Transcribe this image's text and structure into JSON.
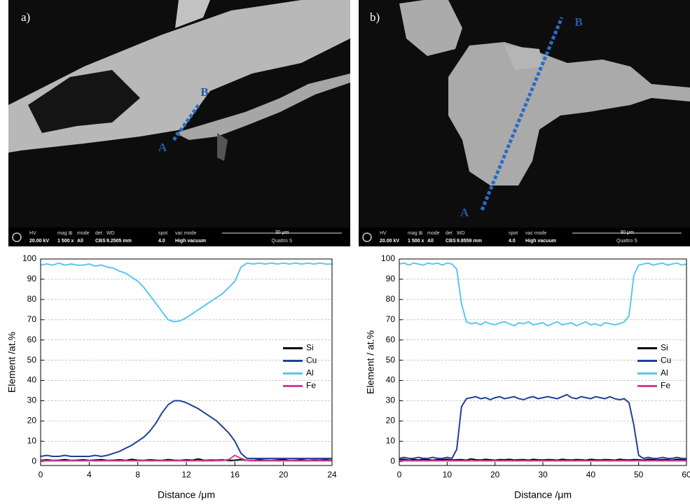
{
  "images": [
    {
      "label": "a)",
      "start": "A",
      "end": "B",
      "info": [
        {
          "label": "HV",
          "value": "20.00 kV"
        },
        {
          "label": "mag ⊞",
          "value": "1 500 x"
        },
        {
          "label": "mode",
          "value": "All"
        },
        {
          "label": "det",
          "value": "CBS"
        },
        {
          "label": "WD",
          "value": "9.2505 mm"
        },
        {
          "label": "spot",
          "value": "4.0"
        },
        {
          "label": "vac mode",
          "value": "High vacuum"
        }
      ],
      "scale": "30 μm",
      "instrument": "Quattro S"
    },
    {
      "label": "b)",
      "start": "A",
      "end": "B",
      "info": [
        {
          "label": "HV",
          "value": "20.00 kV"
        },
        {
          "label": "mag ⊞",
          "value": "1 500 x"
        },
        {
          "label": "mode",
          "value": "All"
        },
        {
          "label": "det",
          "value": "CBS"
        },
        {
          "label": "WD",
          "value": "9.8559 mm"
        },
        {
          "label": "spot",
          "value": "4.0"
        },
        {
          "label": "vac mode",
          "value": "High vacuum"
        }
      ],
      "scale": "30 μm",
      "instrument": "Quattro S"
    }
  ],
  "chart_data": [
    {
      "type": "line",
      "x_label": "Distance /μm",
      "y_label": "Element /at.%",
      "xlim": [
        0,
        24
      ],
      "xticks": [
        0,
        4,
        8,
        12,
        16,
        20,
        24
      ],
      "ylim": [
        -2,
        100
      ],
      "yticks": [
        0,
        10,
        20,
        30,
        40,
        50,
        60,
        70,
        80,
        90,
        100
      ],
      "grid": true,
      "legend": "center right",
      "x": [
        0,
        0.5,
        1,
        1.5,
        2,
        2.5,
        3,
        3.5,
        4,
        4.5,
        5,
        5.5,
        6,
        6.5,
        7,
        7.5,
        8,
        8.5,
        9,
        9.5,
        10,
        10.5,
        11,
        11.5,
        12,
        12.5,
        13,
        13.5,
        14,
        14.5,
        15,
        15.5,
        16,
        16.5,
        17,
        17.5,
        18,
        18.5,
        19,
        19.5,
        20,
        20.5,
        21,
        21.5,
        22,
        22.5,
        23,
        23.5,
        24
      ],
      "series": [
        {
          "name": "Si",
          "color": "#000000",
          "values": [
            0.5,
            0.8,
            0.5,
            0.6,
            0.9,
            0.5,
            0.6,
            0.8,
            0.5,
            0.7,
            0.9,
            0.5,
            0.6,
            0.8,
            0.5,
            1,
            0.6,
            0.5,
            0.8,
            0.6,
            0.5,
            0.9,
            0.6,
            0.5,
            0.8,
            0.6,
            1.2,
            0.5,
            0.7,
            0.6,
            0.8,
            0.5,
            0.6,
            0.9,
            0.6,
            0.5,
            0.8,
            0.6,
            0.5,
            0.7,
            0.9,
            0.5,
            0.6,
            0.8,
            0.5,
            0.7,
            0.6,
            0.8,
            0.5
          ]
        },
        {
          "name": "Cu",
          "color": "#1f3f99",
          "values": [
            2.5,
            3,
            2.5,
            2.5,
            3,
            2.5,
            2.5,
            2.5,
            2.5,
            3,
            2.5,
            3,
            4,
            5,
            6.5,
            8,
            10,
            12,
            15,
            19,
            24,
            28,
            30,
            30,
            29,
            27.5,
            26,
            24,
            22,
            20,
            17,
            14,
            10,
            4,
            1.5,
            1.5,
            1.5,
            1.5,
            1.5,
            1.5,
            1.5,
            1.5,
            1.5,
            1.5,
            1.5,
            1.5,
            1.5,
            1.5,
            1.5
          ]
        },
        {
          "name": "Al",
          "color": "#5bc8e8",
          "values": [
            97,
            97.5,
            97,
            98,
            97,
            97.5,
            97,
            97,
            97.5,
            96.5,
            97,
            96,
            95.5,
            94,
            93,
            91,
            89,
            86,
            82,
            78,
            74,
            70,
            69,
            69.5,
            71,
            73,
            75,
            77,
            79,
            81,
            83,
            86,
            89,
            96,
            98,
            97.5,
            98,
            97.5,
            98,
            97.5,
            98,
            97.5,
            98,
            97.5,
            98,
            97.5,
            98,
            97.5,
            97.5
          ]
        },
        {
          "name": "Fe",
          "color": "#d0409a",
          "values": [
            0.3,
            0.3,
            0.4,
            0.3,
            0.3,
            0.4,
            0.3,
            0.3,
            0.4,
            0.3,
            0.3,
            0.4,
            0.3,
            0.3,
            0.4,
            0.3,
            0.3,
            0.4,
            0.3,
            0.3,
            0.4,
            0.3,
            0.3,
            0.4,
            0.3,
            0.3,
            0.4,
            0.3,
            0.3,
            0.4,
            0.5,
            1,
            3,
            1.5,
            0.5,
            0.4,
            0.3,
            0.3,
            0.4,
            0.3,
            0.3,
            0.4,
            0.3,
            0.3,
            0.4,
            0.3,
            0.3,
            0.4,
            0.3
          ]
        }
      ]
    },
    {
      "type": "line",
      "x_label": "Distance /μm",
      "y_label": "Element / at.%",
      "xlim": [
        0,
        60
      ],
      "xticks": [
        0,
        10,
        20,
        30,
        40,
        50,
        60
      ],
      "ylim": [
        -2,
        100
      ],
      "yticks": [
        0,
        10,
        20,
        30,
        40,
        50,
        60,
        70,
        80,
        90,
        100
      ],
      "grid": true,
      "legend": "center right",
      "x": [
        0,
        1,
        2,
        3,
        4,
        5,
        6,
        7,
        8,
        9,
        10,
        11,
        12,
        13,
        14,
        15,
        16,
        17,
        18,
        19,
        20,
        21,
        22,
        23,
        24,
        25,
        26,
        27,
        28,
        29,
        30,
        31,
        32,
        33,
        34,
        35,
        36,
        37,
        38,
        39,
        40,
        41,
        42,
        43,
        44,
        45,
        46,
        47,
        48,
        49,
        50,
        51,
        52,
        53,
        54,
        55,
        56,
        57,
        58,
        59,
        60
      ],
      "series": [
        {
          "name": "Si",
          "color": "#000000",
          "values": [
            0.8,
            1,
            0.6,
            0.9,
            0.7,
            1,
            0.8,
            0.6,
            0.9,
            0.8,
            1,
            0.7,
            0.8,
            0.9,
            0.6,
            1.2,
            0.8,
            0.7,
            1,
            0.8,
            0.6,
            0.9,
            0.8,
            1,
            0.7,
            0.8,
            0.9,
            0.6,
            1,
            0.8,
            0.7,
            0.9,
            0.8,
            0.6,
            1,
            0.8,
            0.7,
            0.9,
            0.8,
            0.6,
            1,
            0.8,
            0.7,
            0.9,
            0.8,
            0.6,
            1,
            0.8,
            0.7,
            0.9,
            0.8,
            0.6,
            1,
            0.8,
            0.7,
            0.9,
            0.8,
            0.6,
            1,
            0.8,
            0.7
          ]
        },
        {
          "name": "Cu",
          "color": "#1f3f99",
          "values": [
            1.5,
            2,
            1.5,
            1.5,
            2,
            1.5,
            1.5,
            2,
            1.5,
            1.5,
            2,
            1.5,
            6,
            27,
            31,
            31.5,
            32,
            31,
            31.5,
            30.5,
            31.5,
            32,
            31,
            31.5,
            32,
            31,
            30.5,
            31.5,
            32,
            31,
            31.5,
            32,
            31.5,
            31,
            32,
            33,
            31.5,
            31,
            32,
            31.5,
            31,
            32,
            31.5,
            31,
            32,
            31,
            30.5,
            31,
            29,
            18,
            3,
            1.5,
            2,
            1.5,
            1.5,
            2,
            1.5,
            1.5,
            2,
            1.5,
            1.5
          ]
        },
        {
          "name": "Al",
          "color": "#5bc8e8",
          "values": [
            97.5,
            98,
            97,
            98,
            97.5,
            97,
            98,
            97.5,
            98,
            97,
            98,
            97.5,
            95,
            78,
            69,
            68,
            68.5,
            67.5,
            69,
            68,
            67.5,
            68.5,
            69,
            68,
            67,
            68.5,
            68,
            69,
            67.5,
            68,
            68.5,
            67,
            68,
            69,
            67.5,
            68,
            68.5,
            67,
            68,
            69,
            67.5,
            68,
            67,
            68.5,
            68,
            67.5,
            68,
            69,
            72,
            92,
            97,
            97.5,
            98,
            97,
            97.5,
            98,
            97,
            97.5,
            98,
            97,
            97.5
          ]
        },
        {
          "name": "Fe",
          "color": "#d0409a",
          "values": [
            0.3,
            0.3,
            0.4,
            0.3,
            0.3,
            0.4,
            0.3,
            0.3,
            0.4,
            0.3,
            0.3,
            0.4,
            0.3,
            0.3,
            0.4,
            0.3,
            0.3,
            0.4,
            0.3,
            0.3,
            0.4,
            0.3,
            0.3,
            0.4,
            0.3,
            0.3,
            0.4,
            0.3,
            0.3,
            0.4,
            0.3,
            0.3,
            0.4,
            0.3,
            0.3,
            0.4,
            0.3,
            0.3,
            0.4,
            0.3,
            0.3,
            0.4,
            0.3,
            0.3,
            0.4,
            0.3,
            0.3,
            0.4,
            0.3,
            0.3,
            0.4,
            0.3,
            0.3,
            0.4,
            0.3,
            0.3,
            0.4,
            0.3,
            0.3,
            0.4,
            0.3
          ]
        }
      ]
    }
  ]
}
